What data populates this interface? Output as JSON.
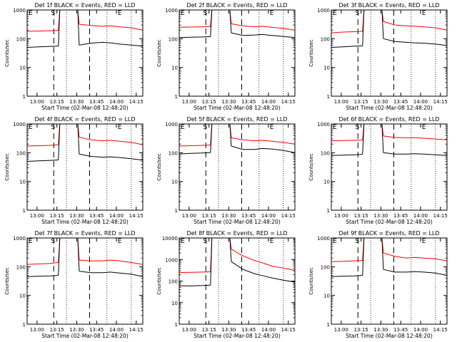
{
  "chart_data": [
    {
      "type": "line",
      "title": "Det 1f BLACK = Events, RED = LLD",
      "ylabel": "Counts/sec",
      "xlabel": "Start Time (02-Mar-08 12:48:20)",
      "x_ticks": [
        "13:00",
        "13:15",
        "13:30",
        "13:45",
        "14:00",
        "14:15"
      ],
      "x_range_min": [
        0,
        100
      ],
      "y_ticks": [
        "1",
        "10",
        "100",
        "1000"
      ],
      "ylim": [
        1,
        1000
      ],
      "yscale": "log",
      "markers": [
        "S",
        "E"
      ],
      "series": [
        {
          "color": "#ff0000",
          "x": [
            0,
            10,
            20,
            27,
            35,
            40,
            45,
            55,
            65,
            72,
            80,
            90,
            100
          ],
          "values": [
            180,
            185,
            190,
            195,
            null,
            null,
            320,
            290,
            270,
            280,
            260,
            240,
            200
          ]
        },
        {
          "color": "#000000",
          "x": [
            0,
            10,
            20,
            27,
            35,
            40,
            45,
            55,
            65,
            72,
            80,
            90,
            100
          ],
          "values": [
            50,
            52,
            54,
            55,
            null,
            null,
            60,
            70,
            75,
            72,
            65,
            60,
            55
          ]
        }
      ]
    },
    {
      "type": "line",
      "title": "Det 2f BLACK = Events, RED = LLD",
      "ylabel": "Counts/sec",
      "xlabel": "Start Time (02-Mar-08 12:48:20)",
      "x_ticks": [
        "13:00",
        "13:15",
        "13:30",
        "13:45",
        "14:00",
        "14:15"
      ],
      "x_range_min": [
        0,
        100
      ],
      "y_ticks": [
        "1",
        "10",
        "100",
        "1000"
      ],
      "ylim": [
        1,
        1000
      ],
      "yscale": "log",
      "markers": [
        "S",
        "E"
      ],
      "series": [
        {
          "color": "#ff0000",
          "x": [
            0,
            10,
            20,
            27,
            35,
            40,
            45,
            55,
            65,
            72,
            80,
            90,
            100
          ],
          "values": [
            250,
            255,
            260,
            265,
            null,
            null,
            330,
            280,
            260,
            270,
            250,
            230,
            200
          ]
        },
        {
          "color": "#000000",
          "x": [
            0,
            10,
            20,
            27,
            35,
            40,
            45,
            55,
            65,
            72,
            80,
            90,
            100
          ],
          "values": [
            110,
            112,
            115,
            118,
            null,
            null,
            160,
            130,
            135,
            140,
            130,
            120,
            110
          ]
        }
      ]
    },
    {
      "type": "line",
      "title": "Det 3f BLACK = Events, RED = LLD",
      "ylabel": "Counts/sec",
      "xlabel": "Start Time (02-Mar-08 12:48:20)",
      "x_ticks": [
        "13:00",
        "13:15",
        "13:30",
        "13:45",
        "14:00",
        "14:15"
      ],
      "x_range_min": [
        0,
        100
      ],
      "y_ticks": [
        "1",
        "10",
        "100",
        "1000"
      ],
      "ylim": [
        1,
        1000
      ],
      "yscale": "log",
      "markers": [
        "S",
        "E"
      ],
      "series": [
        {
          "color": "#ff0000",
          "x": [
            0,
            10,
            20,
            27,
            35,
            40,
            45,
            55,
            65,
            72,
            80,
            90,
            100
          ],
          "values": [
            160,
            170,
            175,
            180,
            null,
            null,
            400,
            300,
            280,
            270,
            260,
            240,
            200
          ]
        },
        {
          "color": "#000000",
          "x": [
            0,
            10,
            20,
            27,
            35,
            40,
            45,
            55,
            65,
            72,
            80,
            90,
            100
          ],
          "values": [
            50,
            52,
            55,
            56,
            null,
            null,
            100,
            80,
            75,
            72,
            70,
            65,
            58
          ]
        }
      ]
    },
    {
      "type": "line",
      "title": "Det 4f BLACK = Events, RED = LLD",
      "ylabel": "Counts/sec",
      "xlabel": "Start Time (02-Mar-08 12:48:20)",
      "x_ticks": [
        "13:00",
        "13:15",
        "13:30",
        "13:45",
        "14:00",
        "14:15"
      ],
      "x_range_min": [
        0,
        100
      ],
      "y_ticks": [
        "1",
        "10",
        "100",
        "1000"
      ],
      "ylim": [
        1,
        1000
      ],
      "yscale": "log",
      "markers": [
        "S",
        "E"
      ],
      "series": [
        {
          "color": "#ff0000",
          "x": [
            0,
            10,
            20,
            27,
            35,
            40,
            45,
            55,
            65,
            72,
            80,
            90,
            100
          ],
          "values": [
            170,
            175,
            180,
            190,
            null,
            null,
            350,
            280,
            260,
            270,
            250,
            230,
            190
          ]
        },
        {
          "color": "#000000",
          "x": [
            0,
            10,
            20,
            27,
            35,
            40,
            45,
            55,
            65,
            72,
            80,
            90,
            100
          ],
          "values": [
            50,
            52,
            54,
            56,
            null,
            null,
            90,
            75,
            70,
            72,
            68,
            62,
            55
          ]
        }
      ]
    },
    {
      "type": "line",
      "title": "Det 5f BLACK = Events, RED = LLD",
      "ylabel": "Counts/sec",
      "xlabel": "Start Time (02-Mar-08 12:48:20)",
      "x_ticks": [
        "13:00",
        "13:15",
        "13:30",
        "13:45",
        "14:00",
        "14:15"
      ],
      "x_range_min": [
        0,
        100
      ],
      "y_ticks": [
        "1",
        "10",
        "100",
        "1000"
      ],
      "ylim": [
        1,
        1000
      ],
      "yscale": "log",
      "markers": [
        "S",
        "E"
      ],
      "series": [
        {
          "color": "#ff0000",
          "x": [
            0,
            10,
            20,
            27,
            35,
            40,
            45,
            55,
            65,
            72,
            80,
            90,
            100
          ],
          "values": [
            170,
            175,
            180,
            185,
            null,
            null,
            330,
            280,
            260,
            270,
            250,
            230,
            200
          ]
        },
        {
          "color": "#000000",
          "x": [
            0,
            10,
            20,
            27,
            35,
            40,
            45,
            55,
            65,
            72,
            80,
            90,
            100
          ],
          "values": [
            90,
            95,
            98,
            100,
            null,
            null,
            170,
            130,
            130,
            140,
            135,
            120,
            100
          ]
        }
      ]
    },
    {
      "type": "line",
      "title": "Det 6f BLACK = Events, RED = LLD",
      "ylabel": "Counts/sec",
      "xlabel": "Start Time (02-Mar-08 12:48:20)",
      "x_ticks": [
        "13:00",
        "13:15",
        "13:30",
        "13:45",
        "14:00",
        "14:15"
      ],
      "x_range_min": [
        0,
        100
      ],
      "y_ticks": [
        "1",
        "10",
        "100",
        "1000"
      ],
      "ylim": [
        1,
        1000
      ],
      "yscale": "log",
      "markers": [
        "S",
        "E"
      ],
      "series": [
        {
          "color": "#ff0000",
          "x": [
            0,
            10,
            20,
            27,
            35,
            40,
            45,
            55,
            65,
            72,
            80,
            90,
            100
          ],
          "values": [
            260,
            265,
            270,
            275,
            null,
            null,
            380,
            340,
            330,
            330,
            320,
            300,
            280
          ]
        },
        {
          "color": "#000000",
          "x": [
            0,
            10,
            20,
            27,
            35,
            40,
            45,
            55,
            65,
            72,
            80,
            90,
            100
          ],
          "values": [
            80,
            82,
            85,
            88,
            null,
            null,
            100,
            90,
            90,
            92,
            90,
            85,
            80
          ]
        }
      ]
    },
    {
      "type": "line",
      "title": "Det 7f BLACK = Events, RED = LLD",
      "ylabel": "Counts/sec",
      "xlabel": "Start Time (02-Mar-08 12:48:20)",
      "x_ticks": [
        "13:00",
        "13:15",
        "13:30",
        "13:45",
        "14:00",
        "14:15"
      ],
      "x_range_min": [
        0,
        100
      ],
      "y_ticks": [
        "1",
        "10",
        "100",
        "1000"
      ],
      "ylim": [
        1,
        1000
      ],
      "yscale": "log",
      "markers": [
        "S",
        "E"
      ],
      "series": [
        {
          "color": "#ff0000",
          "x": [
            0,
            10,
            20,
            27,
            35,
            40,
            45,
            55,
            65,
            72,
            80,
            90,
            100
          ],
          "values": [
            120,
            125,
            130,
            140,
            null,
            null,
            170,
            160,
            160,
            170,
            160,
            140,
            120
          ]
        },
        {
          "color": "#000000",
          "x": [
            0,
            10,
            20,
            27,
            35,
            40,
            45,
            55,
            65,
            72,
            80,
            90,
            100
          ],
          "values": [
            45,
            47,
            48,
            50,
            null,
            null,
            70,
            62,
            62,
            65,
            60,
            55,
            45
          ]
        }
      ]
    },
    {
      "type": "line",
      "title": "Det 8f BLACK = Events, RED = LLD",
      "ylabel": "Counts/sec",
      "xlabel": "Start Time (02-Mar-08 12:48:20)",
      "x_ticks": [
        "13:00",
        "13:15",
        "13:30",
        "13:45",
        "14:00",
        "14:15"
      ],
      "x_range_min": [
        0,
        100
      ],
      "y_ticks": [
        "1",
        "10",
        "100",
        "1000",
        "10000"
      ],
      "ylim": [
        1,
        10000
      ],
      "yscale": "log",
      "markers": [
        "S",
        "E"
      ],
      "series": [
        {
          "color": "#ff0000",
          "x": [
            0,
            10,
            20,
            27,
            35,
            40,
            45,
            55,
            65,
            72,
            80,
            90,
            100
          ],
          "values": [
            250,
            255,
            260,
            270,
            null,
            null,
            3000,
            1500,
            900,
            700,
            500,
            400,
            320
          ]
        },
        {
          "color": "#000000",
          "x": [
            0,
            10,
            20,
            27,
            35,
            40,
            45,
            55,
            65,
            72,
            80,
            90,
            100
          ],
          "values": [
            60,
            60,
            62,
            65,
            null,
            null,
            800,
            350,
            220,
            180,
            140,
            110,
            90
          ]
        }
      ]
    },
    {
      "type": "line",
      "title": "Det 9f BLACK = Events, RED = LLD",
      "ylabel": "Counts/sec",
      "xlabel": "Start Time (02-Mar-08 12:48:20)",
      "x_ticks": [
        "13:00",
        "13:15",
        "13:30",
        "13:45",
        "14:00",
        "14:15"
      ],
      "x_range_min": [
        0,
        100
      ],
      "y_ticks": [
        "1",
        "10",
        "100",
        "1000"
      ],
      "ylim": [
        1,
        1000
      ],
      "yscale": "log",
      "markers": [
        "S",
        "E"
      ],
      "series": [
        {
          "color": "#ff0000",
          "x": [
            0,
            10,
            20,
            27,
            35,
            40,
            45,
            55,
            65,
            72,
            80,
            90,
            100
          ],
          "values": [
            150,
            155,
            160,
            165,
            null,
            null,
            300,
            230,
            200,
            210,
            200,
            190,
            160
          ]
        },
        {
          "color": "#000000",
          "x": [
            0,
            10,
            20,
            27,
            35,
            40,
            45,
            55,
            65,
            72,
            80,
            90,
            100
          ],
          "values": [
            45,
            47,
            48,
            50,
            null,
            null,
            80,
            65,
            65,
            68,
            65,
            60,
            50
          ]
        }
      ]
    }
  ]
}
